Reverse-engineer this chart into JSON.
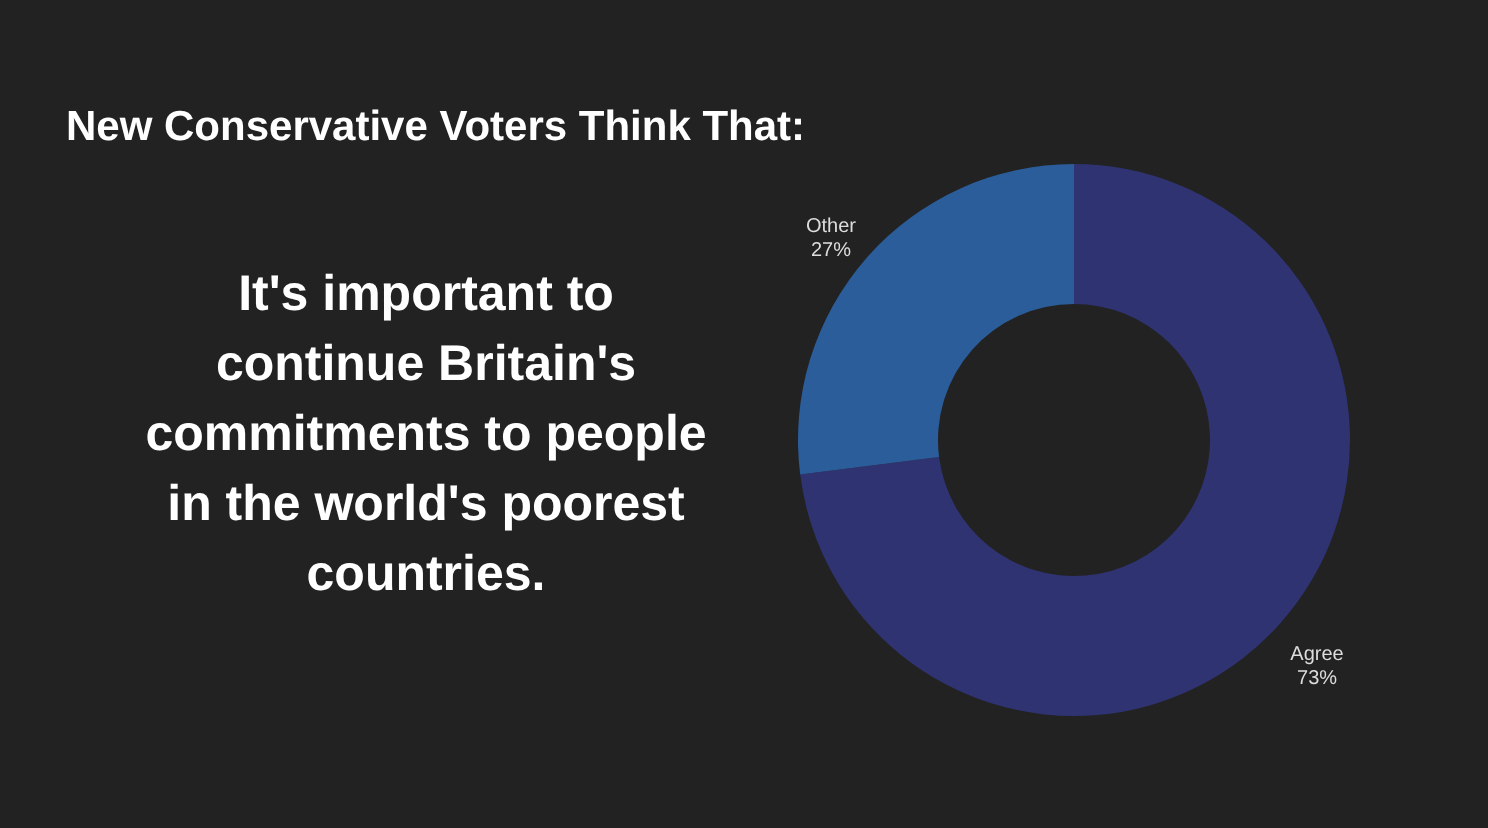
{
  "chart_data": {
    "type": "donut",
    "title": "New Conservative Voters Think That:",
    "subtitle": "It's important to continue Britain's commitments to people in the world's poorest countries.",
    "categories": [
      "Agree",
      "Other"
    ],
    "values": [
      73,
      27
    ],
    "colors": [
      "#2f3371",
      "#2c5d9b"
    ],
    "value_labels": [
      "73%",
      "27%"
    ]
  }
}
